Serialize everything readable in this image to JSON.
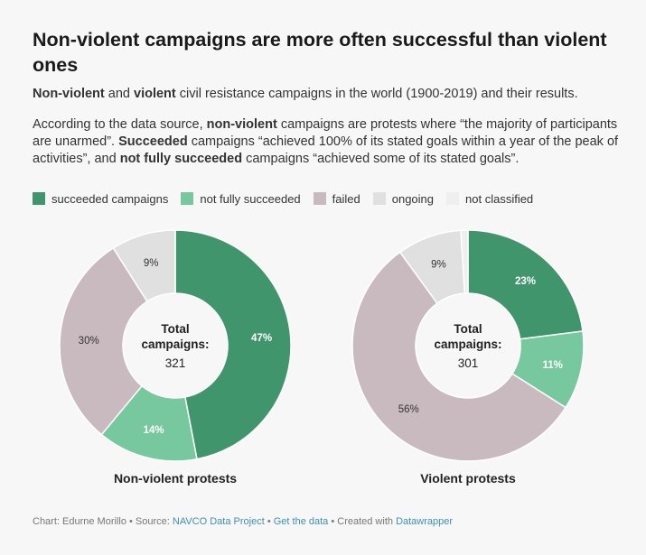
{
  "title": "Non-violent campaigns are more often successful than violent ones",
  "subtitle": {
    "b1": "Non-violent",
    "t1": " and ",
    "b2": "violent",
    "t2": " civil resistance campaigns in the world (1900-2019) and their results."
  },
  "description": {
    "t1": "According to the data source, ",
    "b1": "non-violent",
    "t2": " campaigns are protests where “the majority of participants are unarmed”. ",
    "b2": "Succeeded",
    "t3": "  campaigns “achieved 100% of its stated goals within a year of the peak of activities”, and ",
    "b3": "not fully succeeded",
    "t4": " campaigns “achieved some of its stated goals”."
  },
  "legend": [
    {
      "label": "succeeded campaigns",
      "color": "#41956d"
    },
    {
      "label": "not fully succeeded",
      "color": "#77c89e"
    },
    {
      "label": "failed",
      "color": "#c9bac0"
    },
    {
      "label": "ongoing",
      "color": "#e0e0e0"
    },
    {
      "label": "not classified",
      "color": "#efefef"
    }
  ],
  "chart_data": [
    {
      "type": "pie",
      "title": "Non-violent protests",
      "center_label": [
        "Total",
        "campaigns:"
      ],
      "center_value": "321",
      "slices": [
        {
          "label": "succeeded campaigns",
          "value": 47,
          "display": "47%",
          "color": "#41956d"
        },
        {
          "label": "not fully succeeded",
          "value": 14,
          "display": "14%",
          "color": "#77c89e"
        },
        {
          "label": "failed",
          "value": 30,
          "display": "30%",
          "color": "#c9bac0"
        },
        {
          "label": "ongoing",
          "value": 9,
          "display": "9%",
          "color": "#e0e0e0"
        },
        {
          "label": "not classified",
          "value": 0,
          "display": "",
          "color": "#efefef"
        }
      ]
    },
    {
      "type": "pie",
      "title": "Violent protests",
      "center_label": [
        "Total",
        "campaigns:"
      ],
      "center_value": "301",
      "slices": [
        {
          "label": "succeeded campaigns",
          "value": 23,
          "display": "23%",
          "color": "#41956d"
        },
        {
          "label": "not fully succeeded",
          "value": 11,
          "display": "11%",
          "color": "#77c89e"
        },
        {
          "label": "failed",
          "value": 56,
          "display": "56%",
          "color": "#c9bac0"
        },
        {
          "label": "ongoing",
          "value": 9,
          "display": "9%",
          "color": "#e0e0e0"
        },
        {
          "label": "not classified",
          "value": 1,
          "display": "",
          "color": "#efefef"
        }
      ]
    }
  ],
  "footer": {
    "chart_by": "Chart: Edurne Morillo",
    "sep1": " • Source: ",
    "source": "NAVCO Data Project",
    "sep2": " • ",
    "get_data": "Get the data",
    "sep3": " • Created with ",
    "tool": "Datawrapper"
  }
}
